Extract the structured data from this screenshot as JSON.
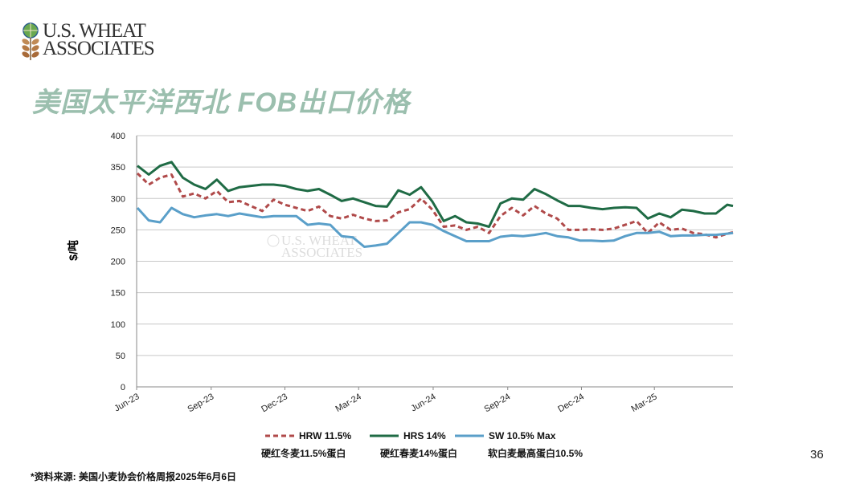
{
  "logo": {
    "line1": "U.S. WHEAT",
    "line2": "ASSOCIATES"
  },
  "title": "美国太平洋西北 FOB出口价格",
  "page_number": "36",
  "footnote": "*资料来源: 美国小麦协会价格周报2025年6月6日",
  "legend_sublabels": [
    "硬红冬麦11.5%蛋白",
    "硬红春麦14%蛋白",
    "软白麦最高蛋白10.5%"
  ],
  "chart_data": {
    "type": "line",
    "title": "",
    "xlabel": "",
    "ylabel": "$/吨",
    "ylim": [
      0,
      400
    ],
    "yticks": [
      0,
      50,
      100,
      150,
      200,
      250,
      300,
      350,
      400
    ],
    "xlim": [
      "2023-06-01",
      "2025-06-06"
    ],
    "xtick_labels": [
      "Jun-23",
      "Sep-23",
      "Dec-23",
      "Mar-24",
      "Jun-24",
      "Sep-24",
      "Dec-24",
      "Mar-25"
    ],
    "xtick_dates": [
      "2023-06-01",
      "2023-09-01",
      "2023-12-01",
      "2024-03-01",
      "2024-06-01",
      "2024-09-01",
      "2024-12-01",
      "2025-03-01"
    ],
    "grid": "horizontal",
    "legend_placement": "bottom",
    "watermark": "U.S. WHEAT ASSOCIATES",
    "x": [
      "2023-06-02",
      "2023-06-16",
      "2023-06-30",
      "2023-07-14",
      "2023-07-28",
      "2023-08-11",
      "2023-08-25",
      "2023-09-08",
      "2023-09-22",
      "2023-10-06",
      "2023-10-20",
      "2023-11-03",
      "2023-11-17",
      "2023-12-01",
      "2023-12-15",
      "2023-12-29",
      "2024-01-12",
      "2024-01-26",
      "2024-02-09",
      "2024-02-23",
      "2024-03-08",
      "2024-03-22",
      "2024-04-05",
      "2024-04-19",
      "2024-05-03",
      "2024-05-17",
      "2024-05-31",
      "2024-06-14",
      "2024-06-28",
      "2024-07-12",
      "2024-07-26",
      "2024-08-09",
      "2024-08-23",
      "2024-09-06",
      "2024-09-20",
      "2024-10-04",
      "2024-10-18",
      "2024-11-01",
      "2024-11-15",
      "2024-11-29",
      "2024-12-13",
      "2024-12-27",
      "2025-01-10",
      "2025-01-24",
      "2025-02-07",
      "2025-02-21",
      "2025-03-07",
      "2025-03-21",
      "2025-04-04",
      "2025-04-18",
      "2025-05-02",
      "2025-05-16",
      "2025-05-30",
      "2025-06-06"
    ],
    "series": [
      {
        "name": "HRW 11.5%",
        "color": "#b04a4a",
        "dash": true,
        "values": [
          340,
          322,
          333,
          338,
          303,
          308,
          300,
          312,
          294,
          296,
          288,
          280,
          298,
          290,
          285,
          280,
          287,
          272,
          268,
          274,
          268,
          264,
          265,
          278,
          283,
          300,
          282,
          255,
          257,
          250,
          255,
          245,
          272,
          285,
          273,
          288,
          276,
          268,
          250,
          250,
          251,
          250,
          252,
          258,
          264,
          245,
          262,
          250,
          252,
          245,
          243,
          238,
          244,
          246
        ]
      },
      {
        "name": "HRS 14%",
        "color": "#1f6b45",
        "dash": false,
        "values": [
          352,
          338,
          352,
          358,
          333,
          322,
          315,
          330,
          312,
          318,
          320,
          322,
          322,
          320,
          315,
          312,
          315,
          306,
          296,
          300,
          294,
          288,
          287,
          313,
          306,
          318,
          295,
          264,
          272,
          262,
          260,
          255,
          292,
          300,
          298,
          315,
          307,
          297,
          288,
          288,
          285,
          283,
          285,
          286,
          285,
          268,
          276,
          270,
          282,
          280,
          276,
          276,
          290,
          288
        ]
      },
      {
        "name": "SW 10.5% Max",
        "color": "#5a9fc9",
        "dash": false,
        "values": [
          285,
          265,
          262,
          285,
          275,
          270,
          273,
          275,
          272,
          276,
          273,
          270,
          272,
          272,
          272,
          258,
          260,
          258,
          240,
          238,
          223,
          225,
          228,
          245,
          262,
          262,
          258,
          248,
          240,
          232,
          232,
          232,
          239,
          241,
          240,
          242,
          245,
          240,
          238,
          233,
          233,
          232,
          233,
          240,
          245,
          245,
          247,
          240,
          241,
          241,
          242,
          242,
          244,
          245
        ]
      }
    ]
  }
}
